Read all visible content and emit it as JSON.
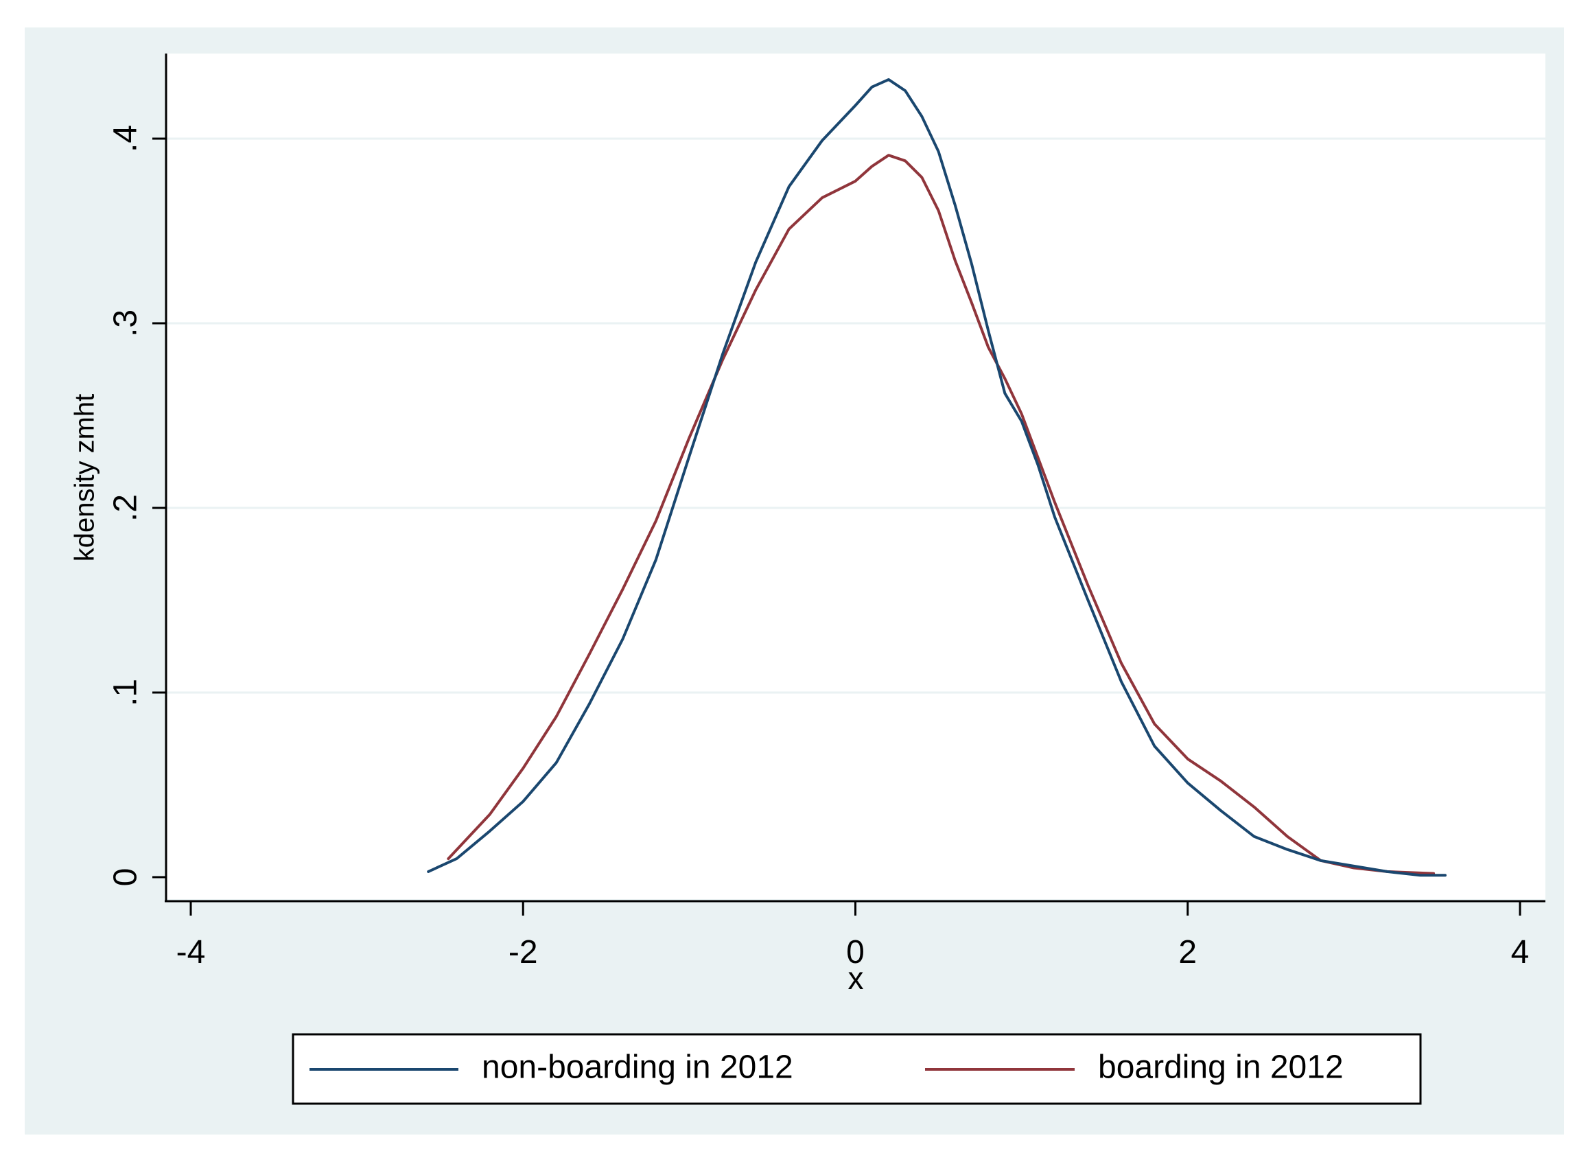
{
  "chart_data": {
    "type": "line",
    "xlabel": "x",
    "ylabel": "kdensity zmht",
    "xlim": [
      -4,
      4
    ],
    "ylim": [
      0,
      0.44
    ],
    "x_ticks": [
      -4,
      -2,
      0,
      2,
      4
    ],
    "x_tick_labels": [
      "-4",
      "-2",
      "0",
      "2",
      "4"
    ],
    "y_ticks": [
      0,
      0.1,
      0.2,
      0.3,
      0.4
    ],
    "y_tick_labels": [
      "0",
      ".1",
      ".2",
      ".3",
      ".4"
    ],
    "grid": "horizontal",
    "legend_position": "bottom",
    "colors": {
      "outer_background": "#eaf2f3",
      "plot_background": "#ffffff",
      "gridline": "#eaf2f3",
      "non_boarding": "#1a476f",
      "boarding": "#90353b"
    },
    "series": [
      {
        "name": "non-boarding in 2012",
        "x": [
          -2.57,
          -2.4,
          -2.2,
          -2.0,
          -1.8,
          -1.6,
          -1.4,
          -1.2,
          -1.0,
          -0.8,
          -0.6,
          -0.4,
          -0.2,
          0.0,
          0.1,
          0.2,
          0.3,
          0.4,
          0.5,
          0.6,
          0.7,
          0.8,
          0.9,
          1.0,
          1.1,
          1.2,
          1.4,
          1.6,
          1.8,
          2.0,
          2.2,
          2.4,
          2.6,
          2.8,
          3.0,
          3.2,
          3.4,
          3.55
        ],
        "y": [
          0.003,
          0.01,
          0.025,
          0.041,
          0.062,
          0.094,
          0.129,
          0.172,
          0.228,
          0.283,
          0.333,
          0.374,
          0.399,
          0.418,
          0.428,
          0.432,
          0.426,
          0.412,
          0.393,
          0.364,
          0.332,
          0.296,
          0.262,
          0.247,
          0.223,
          0.195,
          0.15,
          0.106,
          0.071,
          0.051,
          0.036,
          0.022,
          0.015,
          0.009,
          0.006,
          0.003,
          0.001,
          0.001
        ]
      },
      {
        "name": "boarding in 2012",
        "x": [
          -2.45,
          -2.2,
          -2.0,
          -1.8,
          -1.6,
          -1.4,
          -1.2,
          -1.0,
          -0.8,
          -0.6,
          -0.4,
          -0.2,
          0.0,
          0.1,
          0.2,
          0.3,
          0.4,
          0.5,
          0.6,
          0.7,
          0.8,
          0.9,
          1.0,
          1.2,
          1.4,
          1.6,
          1.8,
          2.0,
          2.2,
          2.4,
          2.6,
          2.8,
          3.0,
          3.2,
          3.48
        ],
        "y": [
          0.01,
          0.034,
          0.059,
          0.087,
          0.121,
          0.156,
          0.193,
          0.238,
          0.28,
          0.318,
          0.351,
          0.368,
          0.377,
          0.385,
          0.391,
          0.388,
          0.379,
          0.361,
          0.334,
          0.311,
          0.287,
          0.27,
          0.251,
          0.203,
          0.158,
          0.116,
          0.083,
          0.064,
          0.052,
          0.038,
          0.022,
          0.009,
          0.005,
          0.003,
          0.002
        ]
      }
    ]
  }
}
